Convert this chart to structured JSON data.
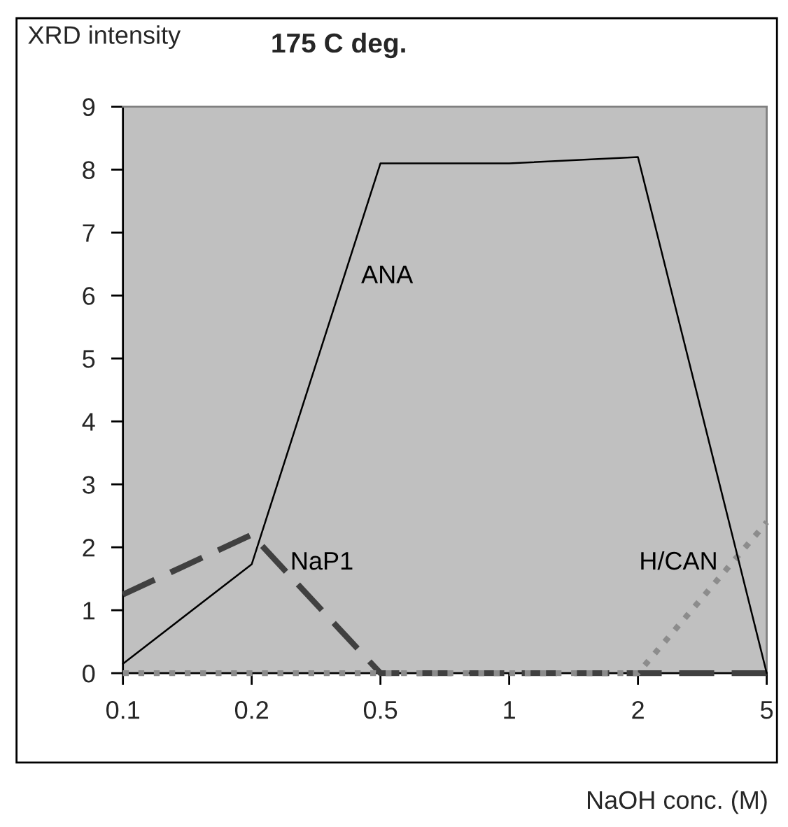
{
  "chart_data": {
    "type": "line",
    "title": "175 C deg.",
    "xlabel": "NaOH conc. (M)",
    "ylabel": "XRD intensity",
    "categories": [
      "0.1",
      "0.2",
      "0.5",
      "1",
      "2",
      "5"
    ],
    "series": [
      {
        "name": "ANA",
        "color": "#000000",
        "line_style": "solid",
        "values": [
          0.15,
          1.73,
          8.1,
          8.1,
          8.2,
          0
        ]
      },
      {
        "name": "NaP1",
        "color": "#404040",
        "line_style": "dashed",
        "values": [
          1.25,
          2.2,
          0,
          0,
          0,
          0
        ]
      },
      {
        "name": "H/CAN",
        "color": "#8c8c8c",
        "line_style": "dotted",
        "values": [
          0,
          0,
          0,
          0,
          0,
          2.4
        ]
      }
    ],
    "ylim": [
      0,
      9
    ],
    "yticks": [
      0,
      1,
      2,
      3,
      4,
      5,
      6,
      7,
      8,
      9
    ],
    "grid": false,
    "legend": false,
    "marker": "none"
  }
}
